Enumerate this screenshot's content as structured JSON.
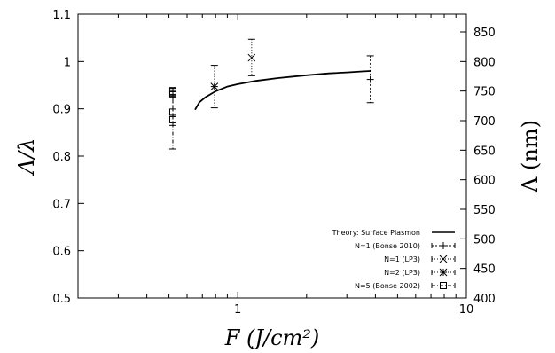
{
  "chart_data": {
    "type": "scatter",
    "x_scale": "log",
    "xlim": [
      0.2,
      10
    ],
    "ylim": [
      0.5,
      1.1
    ],
    "y2lim": [
      400,
      880
    ],
    "xlabel": "F (J/cm²)",
    "ylabel": "Λ/λ",
    "y2label": "Λ (nm)",
    "xticks": [
      {
        "value": 1,
        "label": "1"
      },
      {
        "value": 10,
        "label": "10"
      }
    ],
    "yticks": [
      "0.5",
      "0.6",
      "0.7",
      "0.8",
      "0.9",
      "1",
      "1.1"
    ],
    "y2ticks": [
      "400",
      "450",
      "500",
      "550",
      "600",
      "650",
      "700",
      "750",
      "800",
      "850"
    ],
    "legend_position": "bottom-right",
    "theory_curve": {
      "name": "Theory: Surface Plasmon",
      "x": [
        0.65,
        0.68,
        0.72,
        0.8,
        0.9,
        1.0,
        1.2,
        1.5,
        2.0,
        2.5,
        3.0,
        3.5,
        3.8
      ],
      "y": [
        0.898,
        0.914,
        0.924,
        0.937,
        0.947,
        0.952,
        0.959,
        0.965,
        0.971,
        0.975,
        0.977,
        0.979,
        0.98
      ]
    },
    "series": [
      {
        "name": "N=1 (Bonse 2010)",
        "marker": "plus",
        "points": [
          {
            "x": 3.8,
            "y": 0.962,
            "yerr_low": 0.913,
            "yerr_high": 1.012
          }
        ]
      },
      {
        "name": "N=1 (LP3)",
        "marker": "cross",
        "points": [
          {
            "x": 1.15,
            "y": 1.008,
            "yerr_low": 0.97,
            "yerr_high": 1.047
          }
        ]
      },
      {
        "name": "N=2 (LP3)",
        "marker": "star",
        "points": [
          {
            "x": 0.79,
            "y": 0.947,
            "yerr_low": 0.902,
            "yerr_high": 0.992
          }
        ]
      },
      {
        "name": "N=5 (Bonse 2002)",
        "marker": "box",
        "points": [
          {
            "x": 0.52,
            "y": 0.937,
            "yerr_low": 0.928,
            "yerr_high": 0.945
          },
          {
            "x": 0.52,
            "y": 0.932,
            "yerr_low": 0.926,
            "yerr_high": 0.94
          },
          {
            "x": 0.52,
            "y": 0.893,
            "yerr_low": 0.865,
            "yerr_high": 0.925
          },
          {
            "x": 0.52,
            "y": 0.877,
            "yerr_low": 0.815,
            "yerr_high": 0.936
          }
        ]
      }
    ]
  }
}
